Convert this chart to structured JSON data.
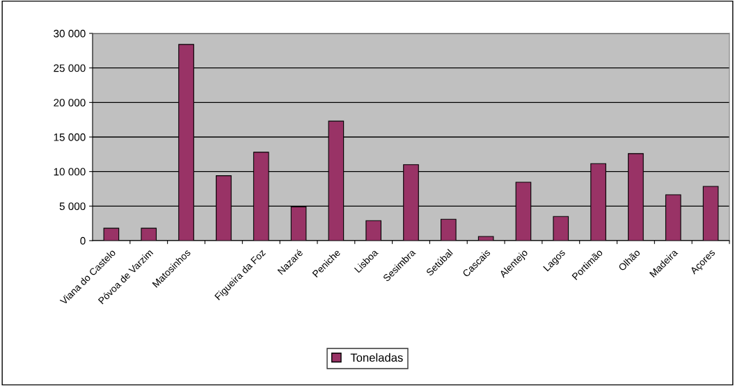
{
  "chart_data": {
    "type": "bar",
    "categories": [
      "Viana do Castelo",
      "Póvoa de Varzim",
      "Matosinhos",
      null,
      "Figueira da Foz",
      "Nazaré",
      "Peniche",
      "Lisboa",
      "Sesimbra",
      "Setúbal",
      "Cascais",
      "Alentejo",
      "Lagos",
      "Portimão",
      "Olhão",
      "Madeira",
      "Açores"
    ],
    "series": [
      {
        "name": "Toneladas",
        "color": "#993366",
        "values": [
          1800,
          1800,
          28400,
          9400,
          12800,
          4900,
          17300,
          2900,
          11000,
          3100,
          600,
          8450,
          3500,
          11150,
          12600,
          6650,
          7850
        ]
      }
    ],
    "ylim": [
      0,
      30000
    ],
    "yticks": [
      0,
      {
        "value": 5000,
        "label": "5 000"
      },
      {
        "value": 10000,
        "label": "10 000"
      },
      {
        "value": 15000,
        "label": "15 000"
      },
      {
        "value": 20000,
        "label": "20 000"
      },
      {
        "value": 25000,
        "label": "25 000"
      },
      {
        "value": 30000,
        "label": "30 000"
      }
    ],
    "grid": "y",
    "legend": "bottom"
  }
}
